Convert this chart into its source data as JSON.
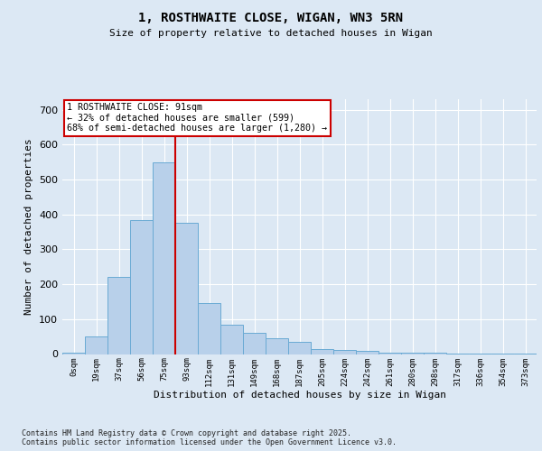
{
  "title1": "1, ROSTHWAITE CLOSE, WIGAN, WN3 5RN",
  "title2": "Size of property relative to detached houses in Wigan",
  "xlabel": "Distribution of detached houses by size in Wigan",
  "ylabel": "Number of detached properties",
  "categories": [
    "0sqm",
    "19sqm",
    "37sqm",
    "56sqm",
    "75sqm",
    "93sqm",
    "112sqm",
    "131sqm",
    "149sqm",
    "168sqm",
    "187sqm",
    "205sqm",
    "224sqm",
    "242sqm",
    "261sqm",
    "280sqm",
    "298sqm",
    "317sqm",
    "336sqm",
    "354sqm",
    "373sqm"
  ],
  "values": [
    5,
    50,
    220,
    385,
    550,
    375,
    145,
    85,
    60,
    45,
    35,
    15,
    12,
    10,
    5,
    5,
    3,
    2,
    1,
    1,
    1
  ],
  "bar_color": "#b8d0ea",
  "bar_edge_color": "#6aaad4",
  "vline_color": "#cc0000",
  "annotation_text": "1 ROSTHWAITE CLOSE: 91sqm\n← 32% of detached houses are smaller (599)\n68% of semi-detached houses are larger (1,280) →",
  "annotation_box_color": "#ffffff",
  "annotation_edge_color": "#cc0000",
  "background_color": "#dce8f4",
  "plot_bg_color": "#dce8f4",
  "footer_text": "Contains HM Land Registry data © Crown copyright and database right 2025.\nContains public sector information licensed under the Open Government Licence v3.0.",
  "ylim": [
    0,
    730
  ],
  "yticks": [
    0,
    100,
    200,
    300,
    400,
    500,
    600,
    700
  ],
  "figsize": [
    6.0,
    5.0
  ],
  "dpi": 100
}
